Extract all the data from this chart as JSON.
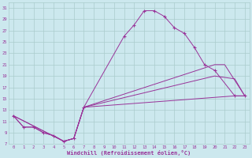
{
  "xlabel": "Windchill (Refroidissement éolien,°C)",
  "bg_color": "#cce8ee",
  "line_color": "#993399",
  "grid_color": "#aacccc",
  "xlim": [
    -0.5,
    23.5
  ],
  "ylim": [
    7,
    32
  ],
  "yticks": [
    7,
    9,
    11,
    13,
    15,
    17,
    19,
    21,
    23,
    25,
    27,
    29,
    31
  ],
  "xticks": [
    0,
    1,
    2,
    3,
    4,
    5,
    6,
    7,
    8,
    9,
    10,
    11,
    12,
    13,
    14,
    15,
    16,
    17,
    18,
    19,
    20,
    21,
    22,
    23
  ],
  "curve1_x": [
    0,
    1,
    2,
    3,
    4,
    5,
    6,
    7,
    11,
    12,
    13,
    14,
    15,
    16,
    17,
    18,
    19,
    20,
    22,
    23
  ],
  "curve1_y": [
    12,
    10,
    10,
    9,
    8.5,
    7.5,
    8,
    13.5,
    26,
    28,
    30.5,
    30.5,
    29.5,
    27.5,
    26.5,
    24,
    21,
    20,
    15.5,
    15.5
  ],
  "curve2_x": [
    0,
    1,
    2,
    3,
    4,
    5,
    6,
    7,
    22,
    23
  ],
  "curve2_y": [
    12,
    10,
    10,
    9,
    8.5,
    7.5,
    8,
    13.5,
    15.5,
    15.5
  ],
  "curve3_x": [
    0,
    5,
    6,
    7,
    20,
    22,
    23
  ],
  "curve3_y": [
    12,
    7.5,
    8,
    13.5,
    19,
    18.5,
    15.5
  ],
  "curve4_x": [
    0,
    5,
    6,
    7,
    20,
    21,
    23
  ],
  "curve4_y": [
    12,
    7.5,
    8,
    13.5,
    21,
    21,
    15.5
  ]
}
